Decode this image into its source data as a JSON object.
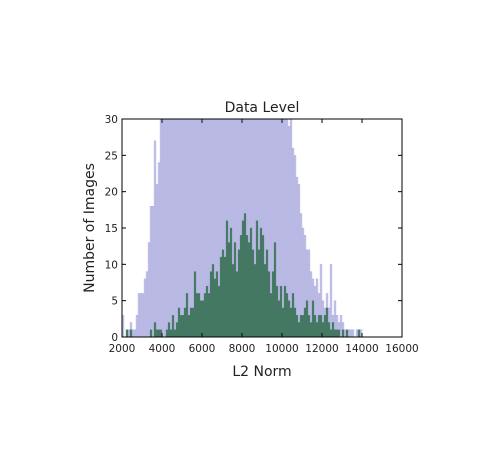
{
  "chart_data": {
    "type": "bar",
    "title": "Data Level",
    "xlabel": "L2 Norm",
    "ylabel": "Number of Images",
    "xlim": [
      2000,
      16000
    ],
    "ylim": [
      0,
      30
    ],
    "xticks": [
      2000,
      4000,
      6000,
      8000,
      10000,
      12000,
      14000,
      16000
    ],
    "yticks": [
      0,
      5,
      10,
      15,
      20,
      25,
      30
    ],
    "grid": false,
    "bin_width": 100,
    "series": [
      {
        "color": "#8080d0",
        "x": [
          2000,
          2100,
          2200,
          2300,
          2400,
          2500,
          2600,
          2700,
          2800,
          2900,
          3000,
          3100,
          3200,
          3300,
          3400,
          3500,
          3600,
          3700,
          3800,
          3900,
          4000,
          4100,
          4200,
          4300,
          4400,
          4500,
          4600,
          4700,
          4800,
          4900,
          5000,
          5100,
          5200,
          5300,
          5400,
          5500,
          5600,
          5700,
          5800,
          5900,
          6000,
          6100,
          6200,
          6300,
          6400,
          6500,
          6600,
          6700,
          6800,
          6900,
          7000,
          7100,
          7200,
          7300,
          7400,
          7500,
          7600,
          7700,
          7800,
          7900,
          8000,
          8100,
          8200,
          8300,
          8400,
          8500,
          8600,
          8700,
          8800,
          8900,
          9000,
          9100,
          9200,
          9300,
          9400,
          9500,
          9600,
          9700,
          9800,
          9900,
          10000,
          10100,
          10200,
          10300,
          10400,
          10500,
          10600,
          10700,
          10800,
          10900,
          11000,
          11100,
          11200,
          11300,
          11400,
          11500,
          11600,
          11700,
          11800,
          11900,
          12000,
          12100,
          12200,
          12300,
          12400,
          12500,
          12600,
          12700,
          12800,
          12900,
          13000,
          13100,
          13200,
          13300,
          13400,
          13500,
          13600,
          13700,
          13800,
          13900,
          14000
        ],
        "values": [
          3,
          0,
          1,
          1,
          2,
          1,
          1,
          3,
          6,
          6,
          6,
          8,
          9,
          13,
          18,
          18,
          27,
          21,
          24,
          30,
          30,
          30,
          30,
          30,
          30,
          30,
          30,
          30,
          30,
          30,
          30,
          30,
          30,
          30,
          30,
          30,
          30,
          30,
          30,
          30,
          30,
          30,
          30,
          30,
          30,
          30,
          30,
          30,
          30,
          30,
          30,
          30,
          30,
          30,
          30,
          30,
          30,
          30,
          30,
          30,
          30,
          30,
          30,
          30,
          30,
          30,
          30,
          30,
          30,
          30,
          30,
          30,
          30,
          30,
          30,
          30,
          30,
          30,
          30,
          30,
          30,
          30,
          30,
          29,
          30,
          26,
          25,
          22,
          21,
          17,
          15,
          14,
          12,
          12,
          9,
          8,
          7,
          8,
          6,
          10,
          5,
          4,
          6,
          4,
          10,
          3,
          5,
          3,
          2,
          3,
          2,
          1,
          1,
          1,
          1,
          1,
          0,
          1,
          1,
          1,
          0
        ]
      },
      {
        "color": "#2e6b4a",
        "x": [
          2200,
          2300,
          2400,
          2500,
          2600,
          2700,
          2800,
          2900,
          3000,
          3100,
          3200,
          3300,
          3400,
          3500,
          3600,
          3700,
          3800,
          3900,
          4000,
          4100,
          4200,
          4300,
          4400,
          4500,
          4600,
          4700,
          4800,
          4900,
          5000,
          5100,
          5200,
          5300,
          5400,
          5500,
          5600,
          5700,
          5800,
          5900,
          6000,
          6100,
          6200,
          6300,
          6400,
          6500,
          6600,
          6700,
          6800,
          6900,
          7000,
          7100,
          7200,
          7300,
          7400,
          7500,
          7600,
          7700,
          7800,
          7900,
          8000,
          8100,
          8200,
          8300,
          8400,
          8500,
          8600,
          8700,
          8800,
          8900,
          9000,
          9100,
          9200,
          9300,
          9400,
          9500,
          9600,
          9700,
          9800,
          9900,
          10000,
          10100,
          10200,
          10300,
          10400,
          10500,
          10600,
          10700,
          10800,
          10900,
          11000,
          11100,
          11200,
          11300,
          11400,
          11500,
          11600,
          11700,
          11800,
          11900,
          12000,
          12100,
          12200,
          12300,
          12400,
          12500,
          12600,
          12700,
          12800,
          12900,
          13000,
          13100,
          13200,
          13300,
          13400,
          13500,
          13600,
          13700,
          13800
        ],
        "values": [
          1,
          0,
          1,
          0,
          0,
          0,
          0,
          0,
          0,
          0,
          0,
          0,
          1,
          0,
          2,
          1,
          1,
          1,
          0,
          0,
          1,
          2,
          1,
          3,
          1,
          2,
          4,
          3,
          3,
          4,
          6,
          3,
          4,
          4,
          9,
          6,
          6,
          5,
          5,
          6,
          7,
          6,
          9,
          10,
          8,
          9,
          7,
          11,
          12,
          11,
          16,
          13,
          15,
          10,
          13,
          9,
          12,
          14,
          16,
          17,
          14,
          13,
          15,
          12,
          10,
          16,
          12,
          15,
          14,
          10,
          12,
          9,
          6,
          9,
          13,
          7,
          5,
          7,
          4,
          7,
          6,
          5,
          4,
          6,
          4,
          3,
          2,
          3,
          3,
          4,
          5,
          3,
          2,
          5,
          3,
          2,
          3,
          3,
          2,
          3,
          4,
          2,
          1,
          2,
          1,
          1,
          1,
          0,
          1,
          0,
          1,
          0,
          0,
          0,
          0,
          0,
          1
        ]
      }
    ]
  }
}
